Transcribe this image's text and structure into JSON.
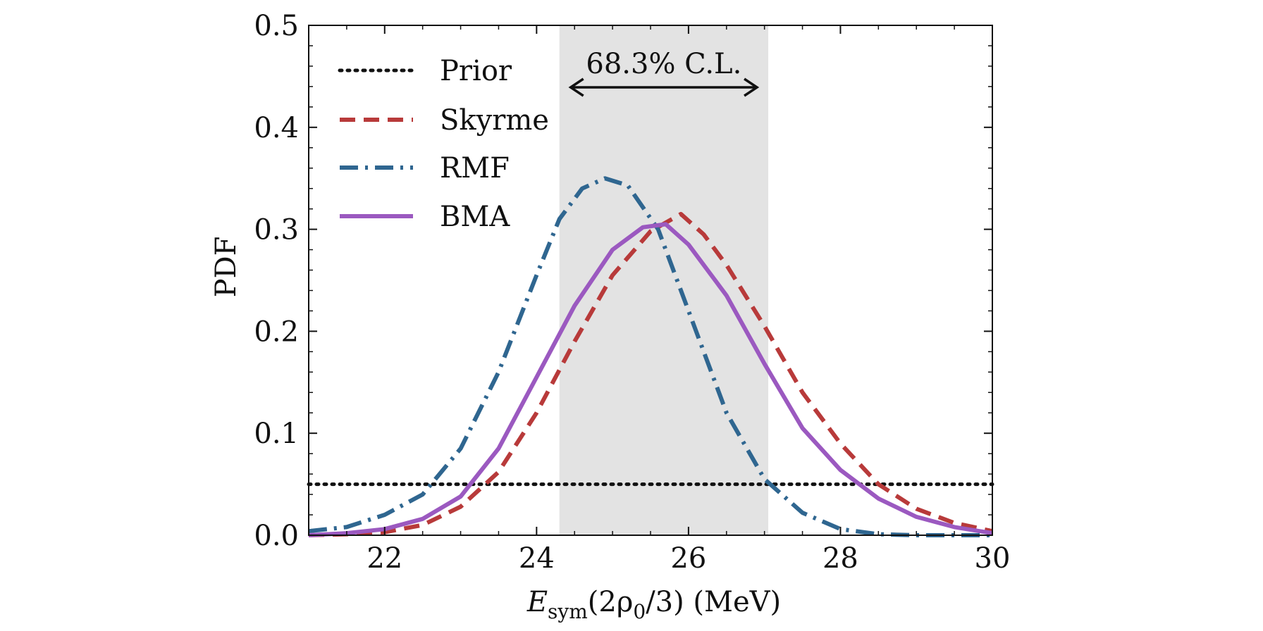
{
  "chart_data": {
    "type": "line",
    "xlabel": {
      "main": "E",
      "sub": "sym",
      "rest": "(2ρ",
      "sub2": "0",
      "rest2": "/3) (MeV)"
    },
    "ylabel": "PDF",
    "xlim": [
      21,
      30
    ],
    "ylim": [
      0,
      0.5
    ],
    "x_ticks": [
      22,
      24,
      26,
      28,
      30
    ],
    "x_tick_labels": [
      "22",
      "24",
      "26",
      "28",
      "30"
    ],
    "y_ticks": [
      0.0,
      0.1,
      0.2,
      0.3,
      0.4,
      0.5
    ],
    "y_tick_labels": [
      "0.0",
      "0.1",
      "0.2",
      "0.3",
      "0.4",
      "0.5"
    ],
    "x_minor_step": 0.5,
    "y_minor_step": 0.02,
    "legend_position": "top-left",
    "band": {
      "x_range": [
        24.3,
        27.05
      ],
      "label": "68.3% C.L.",
      "color": "#e3e3e3"
    },
    "series": [
      {
        "name": "Prior",
        "color": "#111111",
        "style": "dotted",
        "x": [
          21,
          30
        ],
        "y": [
          0.05,
          0.05
        ]
      },
      {
        "name": "Skyrme",
        "color": "#b83a3a",
        "style": "dashed",
        "x": [
          21.0,
          21.5,
          22.0,
          22.5,
          23.0,
          23.5,
          24.0,
          24.5,
          25.0,
          25.5,
          25.9,
          26.2,
          26.5,
          27.0,
          27.5,
          28.0,
          28.5,
          29.0,
          29.5,
          30.0
        ],
        "y": [
          0.0,
          0.001,
          0.003,
          0.01,
          0.028,
          0.062,
          0.12,
          0.19,
          0.255,
          0.298,
          0.315,
          0.295,
          0.265,
          0.205,
          0.14,
          0.09,
          0.05,
          0.026,
          0.012,
          0.004
        ]
      },
      {
        "name": "RMF",
        "color": "#2f6690",
        "style": "dashdot",
        "x": [
          21.0,
          21.5,
          22.0,
          22.5,
          23.0,
          23.5,
          24.0,
          24.3,
          24.6,
          24.9,
          25.2,
          25.6,
          26.0,
          26.5,
          27.0,
          27.5,
          28.0,
          28.5,
          29.0,
          30.0
        ],
        "y": [
          0.004,
          0.008,
          0.02,
          0.04,
          0.085,
          0.16,
          0.255,
          0.31,
          0.34,
          0.35,
          0.343,
          0.3,
          0.22,
          0.12,
          0.055,
          0.022,
          0.006,
          0.001,
          0.0,
          0.0
        ]
      },
      {
        "name": "BMA",
        "color": "#9b59c0",
        "style": "solid",
        "x": [
          21.0,
          21.5,
          22.0,
          22.5,
          23.0,
          23.5,
          24.0,
          24.5,
          25.0,
          25.4,
          25.7,
          26.0,
          26.5,
          27.0,
          27.5,
          28.0,
          28.5,
          29.0,
          29.5,
          30.0
        ],
        "y": [
          0.0,
          0.002,
          0.006,
          0.016,
          0.038,
          0.085,
          0.155,
          0.225,
          0.28,
          0.302,
          0.305,
          0.285,
          0.235,
          0.168,
          0.105,
          0.064,
          0.036,
          0.018,
          0.008,
          0.002
        ]
      }
    ]
  }
}
